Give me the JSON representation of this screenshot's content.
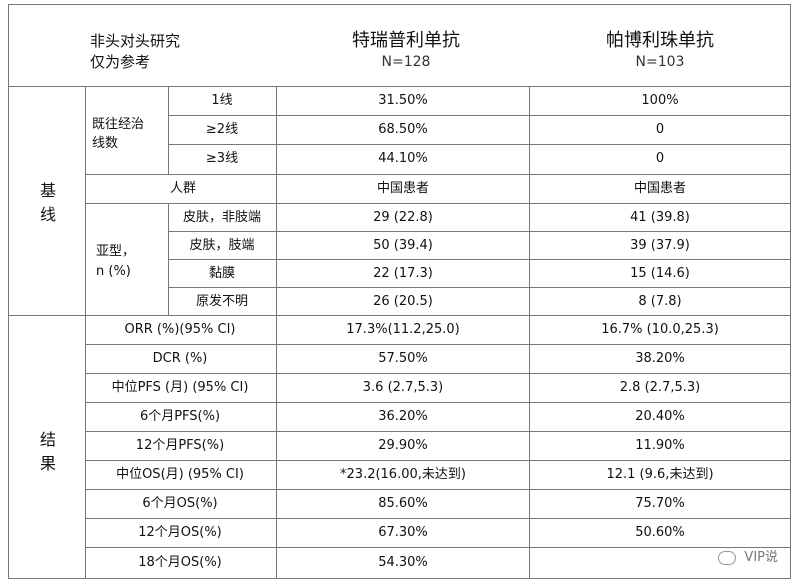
{
  "header": {
    "corner_line1": "非头对头研究",
    "corner_line2": "仅为参考",
    "drug_a": "特瑞普利单抗",
    "drug_a_n": "N=128",
    "drug_b": "帕博利珠单抗",
    "drug_b_n": "N=103"
  },
  "baseline": {
    "section_label": [
      "基",
      "线"
    ],
    "prior_lines_label": [
      "既往经治",
      "线数"
    ],
    "prior_lines": [
      {
        "label": "1线",
        "a": "31.50%",
        "b": "100%"
      },
      {
        "label": "≥2线",
        "a": "68.50%",
        "b": "0"
      },
      {
        "label": "≥3线",
        "a": "44.10%",
        "b": "0"
      }
    ],
    "population": {
      "label": "人群",
      "a": "中国患者",
      "b": "中国患者"
    },
    "subtype_label": [
      "亚型，",
      "n (%)"
    ],
    "subtypes": [
      {
        "label": "皮肤，非肢端",
        "a": "29 (22.8)",
        "b": "41 (39.8)"
      },
      {
        "label": "皮肤，肢端",
        "a": "50 (39.4)",
        "b": "39 (37.9)"
      },
      {
        "label": "黏膜",
        "a": "22 (17.3)",
        "b": "15 (14.6)"
      },
      {
        "label": "原发不明",
        "a": "26 (20.5)",
        "b": "8 (7.8)"
      }
    ]
  },
  "results": {
    "section_label": [
      "结",
      "果"
    ],
    "rows": [
      {
        "label": "ORR (%)(95% CI)",
        "a": "17.3%(11.2,25.0)",
        "b": "16.7% (10.0,25.3)"
      },
      {
        "label": "DCR (%)",
        "a": "57.50%",
        "b": "38.20%"
      },
      {
        "label": "中位PFS (月) (95% CI)",
        "a": "3.6 (2.7,5.3)",
        "b": "2.8 (2.7,5.3)"
      },
      {
        "label": "6个月PFS(%)",
        "a": "36.20%",
        "b": "20.40%"
      },
      {
        "label": "12个月PFS(%)",
        "a": "29.90%",
        "b": "11.90%"
      },
      {
        "label": "中位OS(月) (95% CI)",
        "a": "*23.2(16.00,未达到)",
        "b": "12.1 (9.6,未达到)"
      },
      {
        "label": "6个月OS(%)",
        "a": "85.60%",
        "b": "75.70%"
      },
      {
        "label": "12个月OS(%)",
        "a": "67.30%",
        "b": "50.60%"
      },
      {
        "label": "18个月OS(%)",
        "a": "54.30%",
        "b": ""
      }
    ]
  },
  "watermark": "VIP说"
}
